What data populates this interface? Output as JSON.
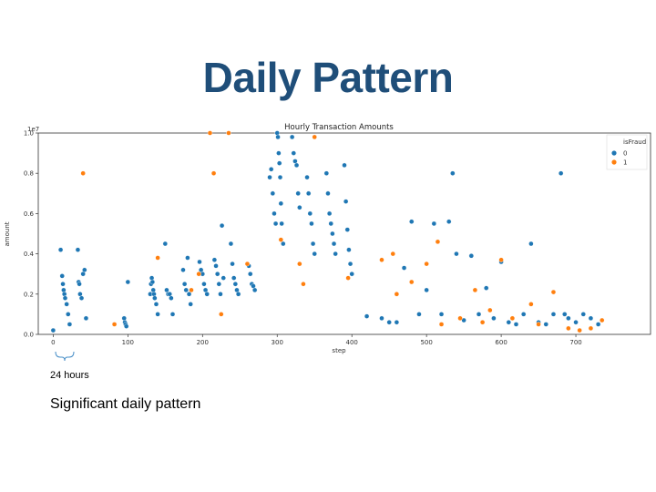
{
  "slide": {
    "title": "Daily Pattern",
    "annotation": "24 hours",
    "caption": "Significant daily pattern"
  },
  "chart_data": {
    "type": "scatter",
    "title": "Hourly Transaction Amounts",
    "xlabel": "step",
    "ylabel": "amount",
    "y_scale_label": "1e7",
    "xlim": [
      -20,
      800
    ],
    "ylim": [
      0,
      1.0
    ],
    "x_ticks": [
      "0",
      "100",
      "200",
      "300",
      "400",
      "500",
      "600",
      "700"
    ],
    "y_ticks": [
      "0.0",
      "0.2",
      "0.4",
      "0.6",
      "0.8",
      "1.0"
    ],
    "legend": {
      "title": "isFraud",
      "position": "top-right"
    },
    "colors": {
      "0": "#1f77b4",
      "1": "#ff7f0e"
    },
    "series": [
      {
        "name": "0",
        "x": [
          0,
          10,
          12,
          13,
          14,
          15,
          16,
          18,
          20,
          22,
          33,
          34,
          35,
          36,
          38,
          40,
          42,
          44,
          95,
          96,
          97,
          98,
          100,
          130,
          131,
          132,
          133,
          134,
          135,
          136,
          138,
          140,
          150,
          152,
          154,
          156,
          158,
          160,
          174,
          176,
          178,
          180,
          182,
          184,
          196,
          198,
          200,
          202,
          204,
          206,
          216,
          218,
          220,
          222,
          224,
          226,
          228,
          238,
          240,
          242,
          244,
          246,
          248,
          262,
          264,
          266,
          268,
          270,
          290,
          292,
          294,
          296,
          298,
          300,
          301,
          302,
          303,
          304,
          305,
          306,
          308,
          320,
          322,
          324,
          326,
          328,
          330,
          340,
          342,
          344,
          346,
          348,
          350,
          366,
          368,
          370,
          372,
          374,
          376,
          378,
          390,
          392,
          394,
          396,
          398,
          400,
          420,
          440,
          450,
          460,
          470,
          480,
          490,
          500,
          510,
          520,
          530,
          535,
          540,
          550,
          560,
          570,
          580,
          590,
          600,
          610,
          620,
          630,
          640,
          650,
          660,
          670,
          680,
          685,
          690,
          700,
          710,
          720,
          730
        ],
        "y": [
          0.02,
          0.42,
          0.29,
          0.25,
          0.22,
          0.2,
          0.18,
          0.15,
          0.1,
          0.05,
          0.42,
          0.26,
          0.25,
          0.2,
          0.18,
          0.3,
          0.32,
          0.08,
          0.08,
          0.06,
          0.05,
          0.04,
          0.26,
          0.2,
          0.25,
          0.28,
          0.26,
          0.22,
          0.2,
          0.18,
          0.15,
          0.1,
          0.45,
          0.22,
          0.2,
          0.2,
          0.18,
          0.1,
          0.32,
          0.25,
          0.22,
          0.38,
          0.2,
          0.15,
          0.36,
          0.32,
          0.3,
          0.25,
          0.22,
          0.2,
          0.37,
          0.34,
          0.3,
          0.25,
          0.2,
          0.54,
          0.28,
          0.45,
          0.35,
          0.28,
          0.25,
          0.22,
          0.2,
          0.34,
          0.3,
          0.25,
          0.24,
          0.22,
          0.78,
          0.82,
          0.7,
          0.6,
          0.55,
          1.0,
          0.98,
          0.9,
          0.85,
          0.78,
          0.65,
          0.55,
          0.45,
          0.98,
          0.9,
          0.86,
          0.84,
          0.7,
          0.63,
          0.78,
          0.7,
          0.6,
          0.55,
          0.45,
          0.4,
          0.8,
          0.7,
          0.6,
          0.55,
          0.5,
          0.45,
          0.4,
          0.84,
          0.66,
          0.52,
          0.42,
          0.35,
          0.3,
          0.09,
          0.08,
          0.06,
          0.06,
          0.33,
          0.56,
          0.1,
          0.22,
          0.55,
          0.1,
          0.56,
          0.8,
          0.4,
          0.07,
          0.39,
          0.1,
          0.23,
          0.08,
          0.36,
          0.06,
          0.05,
          0.1,
          0.45,
          0.06,
          0.05,
          0.1,
          0.8,
          0.1,
          0.08,
          0.06,
          0.1,
          0.08,
          0.05
        ]
      },
      {
        "name": "1",
        "x": [
          40,
          82,
          140,
          185,
          195,
          210,
          215,
          225,
          235,
          260,
          305,
          330,
          335,
          350,
          395,
          440,
          455,
          460,
          480,
          500,
          515,
          520,
          545,
          565,
          575,
          585,
          600,
          615,
          640,
          650,
          670,
          690,
          705,
          720,
          735
        ],
        "y": [
          0.8,
          0.05,
          0.38,
          0.22,
          0.3,
          1.0,
          0.8,
          0.1,
          1.0,
          0.35,
          0.47,
          0.35,
          0.25,
          0.98,
          0.28,
          0.37,
          0.4,
          0.2,
          0.26,
          0.35,
          0.46,
          0.05,
          0.08,
          0.22,
          0.06,
          0.12,
          0.37,
          0.08,
          0.15,
          0.05,
          0.21,
          0.03,
          0.02,
          0.03,
          0.07
        ]
      }
    ]
  }
}
